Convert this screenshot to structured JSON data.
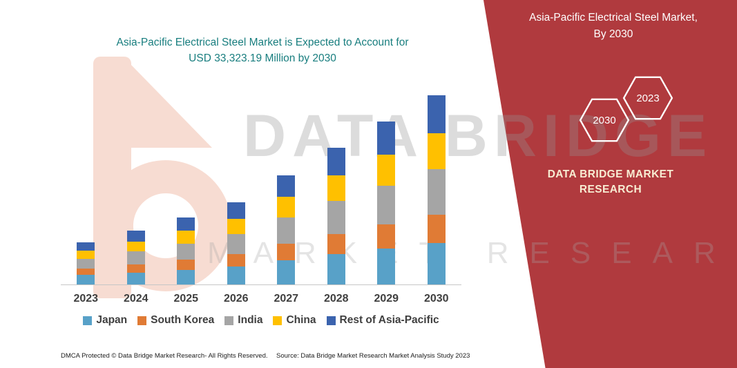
{
  "headline": {
    "line1": "Asia-Pacific Electrical Steel Market is Expected to Account for",
    "line2": "USD 33,323.19 Million by 2030",
    "color": "#177D7E"
  },
  "watermark": {
    "line1": "DATA BRIDGE",
    "line2": "MARKET RESEARCH"
  },
  "side_panel": {
    "bg_color": "#B03A3E",
    "title": "Asia-Pacific Electrical Steel Market, By 2030",
    "hexagons": [
      {
        "label": "2030"
      },
      {
        "label": "2023"
      }
    ],
    "brand_line1": "DATA BRIDGE MARKET",
    "brand_line2": "RESEARCH"
  },
  "footer": {
    "left": "DMCA Protected © Data Bridge Market Research-  All Rights Reserved.",
    "source": "Source: Data Bridge Market Research  Market Analysis Study 2023"
  },
  "chart_data": {
    "type": "bar",
    "stacked": true,
    "title": "Asia-Pacific Electrical Steel Market is Expected to Account for USD 33,323.19 Million by 2030",
    "unit": "USD Million",
    "categories": [
      "2023",
      "2024",
      "2025",
      "2026",
      "2027",
      "2028",
      "2029",
      "2030"
    ],
    "series": [
      {
        "name": "Japan",
        "color": "#58A1C8",
        "values": [
          1650,
          2100,
          2600,
          3200,
          4250,
          5300,
          6300,
          7300
        ]
      },
      {
        "name": "South Korea",
        "color": "#E07B35",
        "values": [
          1100,
          1400,
          1750,
          2150,
          2900,
          3600,
          4250,
          4950
        ]
      },
      {
        "name": "India",
        "color": "#A5A5A5",
        "values": [
          1780,
          2300,
          2850,
          3500,
          4600,
          5750,
          6850,
          8000
        ]
      },
      {
        "name": "China",
        "color": "#FFC000",
        "values": [
          1400,
          1800,
          2250,
          2750,
          3650,
          4550,
          5450,
          6400
        ]
      },
      {
        "name": "Rest of Asia-Pacific",
        "color": "#3B63AE",
        "values": [
          1470,
          1900,
          2350,
          2900,
          3800,
          4800,
          5750,
          6673
        ]
      }
    ],
    "totals_estimated": [
      7400,
      9500,
      11800,
      14500,
      19200,
      24000,
      28600,
      33323.19
    ],
    "xlabel": "",
    "ylabel": "",
    "ylim": [
      0,
      34000
    ],
    "grid": false,
    "legend_position": "bottom"
  }
}
